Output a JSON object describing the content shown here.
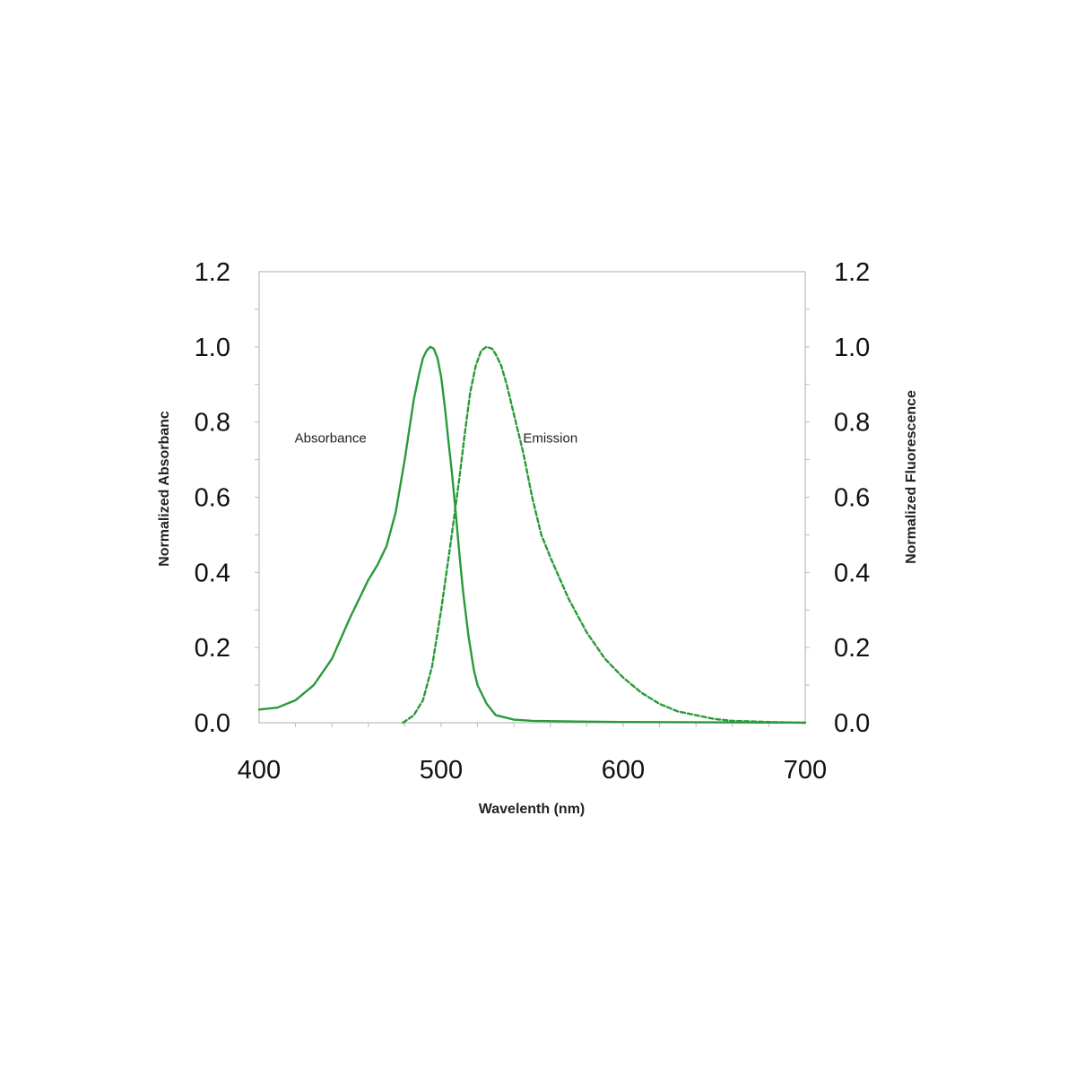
{
  "chart_data": {
    "type": "line",
    "title": "",
    "xlabel": "Wavelenth (nm)",
    "ylabel_left": "Normalized Absorbanc",
    "ylabel_right": "Normalized Fluorescence",
    "xlim": [
      400,
      700
    ],
    "ylim": [
      0,
      1.2
    ],
    "x_ticks": [
      "400",
      "500",
      "600",
      "700"
    ],
    "x_tick_values": [
      400,
      500,
      600,
      700
    ],
    "y_ticks": [
      "0.0",
      "0.2",
      "0.4",
      "0.6",
      "0.8",
      "1.0",
      "1.2"
    ],
    "y_tick_values": [
      0,
      0.2,
      0.4,
      0.6,
      0.8,
      1.0,
      1.2
    ],
    "grid": false,
    "legend": "none",
    "line_color": "#2a9a3a",
    "annotations": [
      {
        "text": "Absorbance",
        "x": 455,
        "y": 0.76
      },
      {
        "text": "Emission",
        "x": 545,
        "y": 0.76
      }
    ],
    "series": [
      {
        "name": "Absorbance",
        "style": "solid",
        "x": [
          400,
          410,
          420,
          430,
          440,
          450,
          460,
          465,
          470,
          475,
          480,
          485,
          488,
          490,
          492,
          494,
          496,
          498,
          500,
          502,
          504,
          506,
          508,
          510,
          512,
          515,
          518,
          520,
          525,
          530,
          540,
          550,
          575,
          600,
          650,
          700
        ],
        "y": [
          0.035,
          0.04,
          0.06,
          0.1,
          0.17,
          0.28,
          0.38,
          0.42,
          0.47,
          0.56,
          0.7,
          0.86,
          0.93,
          0.97,
          0.99,
          1.0,
          0.995,
          0.97,
          0.92,
          0.84,
          0.75,
          0.66,
          0.56,
          0.45,
          0.35,
          0.23,
          0.14,
          0.1,
          0.05,
          0.02,
          0.008,
          0.005,
          0.003,
          0.002,
          0.001,
          0.0
        ]
      },
      {
        "name": "Emission",
        "style": "dashed",
        "x": [
          479,
          482,
          485,
          490,
          495,
          500,
          505,
          510,
          513,
          516,
          519,
          522,
          525,
          528,
          530,
          533,
          536,
          540,
          545,
          550,
          555,
          560,
          570,
          580,
          590,
          600,
          610,
          620,
          630,
          640,
          650,
          660,
          680,
          700
        ],
        "y": [
          0.0,
          0.01,
          0.02,
          0.06,
          0.15,
          0.3,
          0.47,
          0.65,
          0.77,
          0.88,
          0.95,
          0.99,
          1.0,
          0.995,
          0.98,
          0.95,
          0.9,
          0.82,
          0.72,
          0.6,
          0.5,
          0.44,
          0.33,
          0.24,
          0.17,
          0.12,
          0.08,
          0.05,
          0.03,
          0.02,
          0.01,
          0.005,
          0.002,
          0.0
        ]
      }
    ]
  }
}
